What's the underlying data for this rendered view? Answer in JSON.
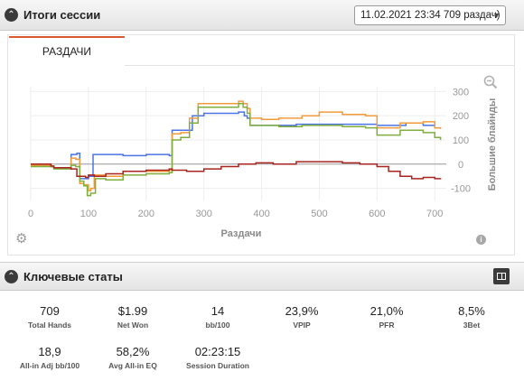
{
  "header": {
    "title": "Итоги сессии",
    "session_select": "11.02.2021 23:34 709 раздач)"
  },
  "tab": {
    "label": "РАЗДАЧИ"
  },
  "chart_data": {
    "type": "line",
    "xlabel": "Раздачи",
    "ylabel": "Большие блайнды",
    "xlim": [
      0,
      720
    ],
    "ylim": [
      -150,
      320
    ],
    "x_ticks": [
      0,
      100,
      200,
      300,
      400,
      500,
      600,
      700
    ],
    "y_ticks": [
      300,
      200,
      100,
      0,
      -100
    ],
    "grid": true,
    "series": [
      {
        "color": "#4b74e6",
        "values": [
          [
            0,
            -5
          ],
          [
            35,
            -10
          ],
          [
            40,
            -15
          ],
          [
            70,
            40
          ],
          [
            80,
            45
          ],
          [
            85,
            -60
          ],
          [
            95,
            -60
          ],
          [
            100,
            -50
          ],
          [
            108,
            40
          ],
          [
            130,
            40
          ],
          [
            160,
            35
          ],
          [
            200,
            40
          ],
          [
            240,
            35
          ],
          [
            245,
            140
          ],
          [
            270,
            140
          ],
          [
            280,
            200
          ],
          [
            300,
            210
          ],
          [
            360,
            215
          ],
          [
            370,
            200
          ],
          [
            375,
            190
          ],
          [
            380,
            160
          ],
          [
            420,
            160
          ],
          [
            460,
            165
          ],
          [
            500,
            165
          ],
          [
            540,
            165
          ],
          [
            580,
            165
          ],
          [
            600,
            160
          ],
          [
            650,
            170
          ],
          [
            680,
            160
          ],
          [
            700,
            165
          ]
        ]
      },
      {
        "color": "#f29b3c",
        "values": [
          [
            0,
            -5
          ],
          [
            35,
            -10
          ],
          [
            40,
            -15
          ],
          [
            70,
            25
          ],
          [
            78,
            20
          ],
          [
            85,
            -80
          ],
          [
            92,
            -85
          ],
          [
            100,
            -110
          ],
          [
            104,
            -100
          ],
          [
            110,
            -45
          ],
          [
            130,
            -50
          ],
          [
            160,
            -30
          ],
          [
            200,
            -30
          ],
          [
            240,
            -25
          ],
          [
            245,
            125
          ],
          [
            260,
            130
          ],
          [
            275,
            190
          ],
          [
            290,
            250
          ],
          [
            360,
            260
          ],
          [
            368,
            250
          ],
          [
            375,
            230
          ],
          [
            380,
            190
          ],
          [
            400,
            185
          ],
          [
            430,
            190
          ],
          [
            470,
            200
          ],
          [
            500,
            215
          ],
          [
            540,
            205
          ],
          [
            580,
            200
          ],
          [
            600,
            150
          ],
          [
            640,
            170
          ],
          [
            680,
            175
          ],
          [
            700,
            150
          ],
          [
            710,
            145
          ]
        ]
      },
      {
        "color": "#7fae3d",
        "values": [
          [
            0,
            -10
          ],
          [
            35,
            -10
          ],
          [
            40,
            -20
          ],
          [
            70,
            -5
          ],
          [
            78,
            -10
          ],
          [
            85,
            -70
          ],
          [
            92,
            -90
          ],
          [
            98,
            -130
          ],
          [
            104,
            -120
          ],
          [
            112,
            -60
          ],
          [
            130,
            -65
          ],
          [
            160,
            -45
          ],
          [
            200,
            -40
          ],
          [
            240,
            -35
          ],
          [
            245,
            100
          ],
          [
            260,
            110
          ],
          [
            275,
            170
          ],
          [
            290,
            235
          ],
          [
            360,
            250
          ],
          [
            368,
            235
          ],
          [
            375,
            210
          ],
          [
            380,
            160
          ],
          [
            400,
            160
          ],
          [
            430,
            155
          ],
          [
            470,
            160
          ],
          [
            500,
            160
          ],
          [
            540,
            155
          ],
          [
            580,
            150
          ],
          [
            600,
            120
          ],
          [
            640,
            140
          ],
          [
            680,
            130
          ],
          [
            700,
            110
          ],
          [
            710,
            100
          ]
        ]
      },
      {
        "color": "#a8241f",
        "values": [
          [
            0,
            0
          ],
          [
            35,
            -8
          ],
          [
            40,
            -15
          ],
          [
            70,
            -20
          ],
          [
            80,
            -50
          ],
          [
            88,
            -50
          ],
          [
            95,
            -55
          ],
          [
            100,
            -45
          ],
          [
            110,
            -50
          ],
          [
            130,
            -40
          ],
          [
            160,
            -30
          ],
          [
            200,
            -25
          ],
          [
            240,
            -20
          ],
          [
            245,
            -25
          ],
          [
            270,
            -30
          ],
          [
            300,
            -20
          ],
          [
            330,
            -10
          ],
          [
            360,
            0
          ],
          [
            390,
            5
          ],
          [
            420,
            0
          ],
          [
            460,
            10
          ],
          [
            500,
            10
          ],
          [
            540,
            5
          ],
          [
            570,
            0
          ],
          [
            600,
            -10
          ],
          [
            620,
            -30
          ],
          [
            640,
            -50
          ],
          [
            660,
            -60
          ],
          [
            680,
            -55
          ],
          [
            700,
            -60
          ],
          [
            710,
            -58
          ]
        ]
      }
    ]
  },
  "stats_section": {
    "title": "Ключевые статы",
    "row1": [
      {
        "value": "709",
        "label": "Total Hands"
      },
      {
        "value": "$1.99",
        "label": "Net Won"
      },
      {
        "value": "14",
        "label": "bb/100"
      },
      {
        "value": "23,9%",
        "label": "VPIP"
      },
      {
        "value": "21,0%",
        "label": "PFR"
      },
      {
        "value": "8,5%",
        "label": "3Bet"
      }
    ],
    "row2": [
      {
        "value": "18,9",
        "label": "All-in Adj bb/100"
      },
      {
        "value": "58,2%",
        "label": "Avg All-in EQ"
      },
      {
        "value": "02:23:15",
        "label": "Session Duration"
      }
    ]
  },
  "icons": {
    "collapse": "chevron-up-icon",
    "settings": "gear-icon",
    "info": "info-icon",
    "zoom": "zoom-out-icon",
    "layout": "layout-columns-icon"
  }
}
